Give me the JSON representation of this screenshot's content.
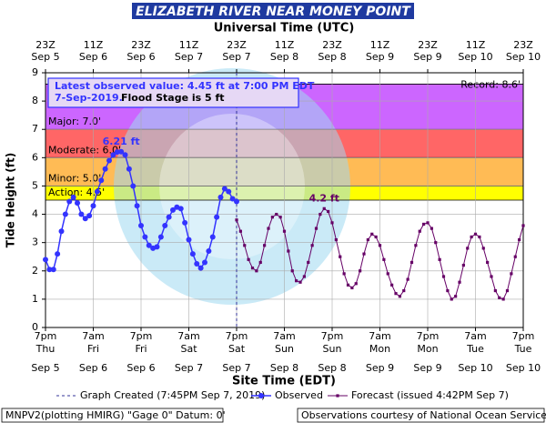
{
  "chart_data": {
    "type": "hydrograph",
    "title": "ELIZABETH RIVER NEAR MONEY POINT",
    "top_axis_title": "Universal Time (UTC)",
    "x_axis_title": "Site Time (EDT)",
    "y_axis_title": "Tide Height (ft)",
    "xlim": [
      0,
      120
    ],
    "ylim": [
      0,
      9
    ],
    "yticks": [
      0,
      1,
      2,
      3,
      4,
      5,
      6,
      7,
      8,
      9
    ],
    "grid": true,
    "xticks": [
      {
        "value": 0,
        "label": "7pm"
      },
      {
        "value": 12,
        "label": "7am"
      },
      {
        "value": 24,
        "label": "7pm"
      },
      {
        "value": 36,
        "label": "7am"
      },
      {
        "value": 48,
        "label": "7pm"
      },
      {
        "value": 60,
        "label": "7am"
      },
      {
        "value": 72,
        "label": "7pm"
      },
      {
        "value": 84,
        "label": "7am"
      },
      {
        "value": 96,
        "label": "7pm"
      },
      {
        "value": 108,
        "label": "7am"
      },
      {
        "value": 120,
        "label": "7pm"
      }
    ],
    "xtick_days": [
      "Thu",
      "Fri",
      "Fri",
      "Sat",
      "Sat",
      "Sun",
      "Sun",
      "Mon",
      "Mon",
      "Tue",
      "Tue"
    ],
    "xtick_dates": [
      "Sep 5",
      "Sep 6",
      "Sep 6",
      "Sep 7",
      "Sep 7",
      "Sep 8",
      "Sep 8",
      "Sep 9",
      "Sep 9",
      "Sep 10",
      "Sep 10"
    ],
    "x2ticks": [
      {
        "value": 0,
        "label": "23Z"
      },
      {
        "value": 12,
        "label": "11Z"
      },
      {
        "value": 24,
        "label": "23Z"
      },
      {
        "value": 36,
        "label": "11Z"
      },
      {
        "value": 48,
        "label": "23Z"
      },
      {
        "value": 60,
        "label": "11Z"
      },
      {
        "value": 72,
        "label": "23Z"
      },
      {
        "value": 84,
        "label": "11Z"
      },
      {
        "value": 96,
        "label": "23Z"
      },
      {
        "value": 108,
        "label": "11Z"
      },
      {
        "value": 120,
        "label": "23Z"
      }
    ],
    "x2tick_dates": [
      "Sep 5",
      "Sep 6",
      "Sep 6",
      "Sep 7",
      "Sep 7",
      "Sep 8",
      "Sep 8",
      "Sep 9",
      "Sep 9",
      "Sep 10",
      "Sep 10"
    ],
    "stages": [
      {
        "name": "Action: 4.5'",
        "value": 4.5,
        "color": "#ffff00"
      },
      {
        "name": "Minor: 5.0'",
        "value": 5.0,
        "color": "#ffbb55"
      },
      {
        "name": "Moderate: 6.0'",
        "value": 6.0,
        "color": "#ff6666"
      },
      {
        "name": "Major: 7.0'",
        "value": 7.0,
        "color": "#cc66ff"
      }
    ],
    "record": {
      "name": "Record: 8.6'",
      "value": 8.6
    },
    "graph_created": {
      "label": "Graph Created (7:45PM Sep 7, 2019)",
      "x": 48
    },
    "annotation": {
      "line1": "Latest observed value: 4.45 ft at 7:00 PM EDT",
      "line2": "7-Sep-2019.",
      "line3": "Flood Stage is 5 ft"
    },
    "peak_labels": [
      {
        "text": "6.21 ft",
        "x": 19,
        "value": 6.21
      },
      {
        "text": "4.2 ft",
        "x": 70,
        "value": 4.2
      }
    ],
    "series": [
      {
        "name": "Observed",
        "color": "#3333ff",
        "x": [
          0,
          1,
          2,
          3,
          4,
          5,
          6,
          7,
          8,
          9,
          10,
          11,
          12,
          13,
          14,
          15,
          16,
          17,
          18,
          19,
          20,
          21,
          22,
          23,
          24,
          25,
          26,
          27,
          28,
          29,
          30,
          31,
          32,
          33,
          34,
          35,
          36,
          37,
          38,
          39,
          40,
          41,
          42,
          43,
          44,
          45,
          46,
          47,
          48
        ],
        "values": [
          2.4,
          2.05,
          2.05,
          2.6,
          3.4,
          4.0,
          4.45,
          4.6,
          4.4,
          4.0,
          3.85,
          3.95,
          4.3,
          4.8,
          5.2,
          5.6,
          5.9,
          6.1,
          6.2,
          6.21,
          6.1,
          5.6,
          5.0,
          4.3,
          3.6,
          3.2,
          2.9,
          2.8,
          2.85,
          3.2,
          3.6,
          3.9,
          4.15,
          4.25,
          4.2,
          3.7,
          3.1,
          2.6,
          2.25,
          2.1,
          2.3,
          2.7,
          3.2,
          3.9,
          4.6,
          4.9,
          4.8,
          4.55,
          4.45
        ]
      },
      {
        "name": "Forecast (issued 4:42PM Sep 7)",
        "color": "#660066",
        "x": [
          48,
          49,
          50,
          51,
          52,
          53,
          54,
          55,
          56,
          57,
          58,
          59,
          60,
          61,
          62,
          63,
          64,
          65,
          66,
          67,
          68,
          69,
          70,
          71,
          72,
          73,
          74,
          75,
          76,
          77,
          78,
          79,
          80,
          81,
          82,
          83,
          84,
          85,
          86,
          87,
          88,
          89,
          90,
          91,
          92,
          93,
          94,
          95,
          96,
          97,
          98,
          99,
          100,
          101,
          102,
          103,
          104,
          105,
          106,
          107,
          108,
          109,
          110,
          111,
          112,
          113,
          114,
          115,
          116,
          117,
          118,
          119,
          120
        ],
        "values": [
          3.8,
          3.4,
          2.9,
          2.4,
          2.1,
          2.0,
          2.3,
          2.9,
          3.5,
          3.9,
          4.0,
          3.9,
          3.4,
          2.7,
          2.0,
          1.65,
          1.6,
          1.8,
          2.3,
          2.9,
          3.5,
          4.0,
          4.2,
          4.1,
          3.7,
          3.1,
          2.5,
          1.9,
          1.5,
          1.4,
          1.55,
          2.0,
          2.6,
          3.1,
          3.3,
          3.2,
          2.9,
          2.4,
          1.9,
          1.5,
          1.2,
          1.1,
          1.3,
          1.7,
          2.3,
          2.9,
          3.4,
          3.65,
          3.7,
          3.5,
          3.0,
          2.4,
          1.8,
          1.3,
          1.0,
          1.1,
          1.6,
          2.2,
          2.8,
          3.2,
          3.3,
          3.2,
          2.8,
          2.3,
          1.8,
          1.3,
          1.05,
          1.0,
          1.3,
          1.9,
          2.5,
          3.1,
          3.6
        ]
      }
    ],
    "footer_left": "MNPV2(plotting HMIRG) \"Gage 0\" Datum: 0'",
    "footer_right": "Observations courtesy of National Ocean Service"
  }
}
